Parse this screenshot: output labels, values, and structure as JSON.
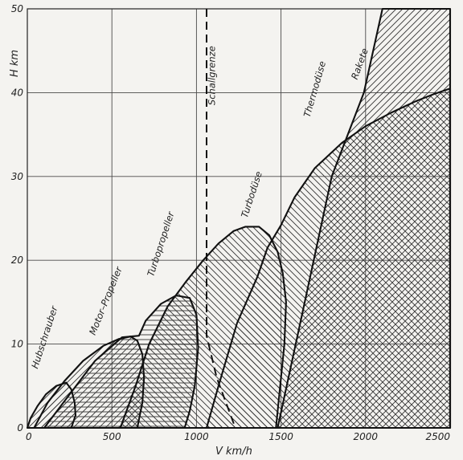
{
  "chart_data": {
    "type": "area",
    "xlabel": "V  km/h",
    "ylabel": "H  km",
    "xlim": [
      0,
      2500
    ],
    "ylim": [
      0,
      50
    ],
    "x_ticks": [
      "0",
      "500",
      "1000",
      "1500",
      "2000",
      "2500"
    ],
    "y_ticks": [
      "0",
      "10",
      "20",
      "30",
      "40",
      "50"
    ],
    "grid": true,
    "regions": [
      {
        "name": "Hubschrauber",
        "hatch": "diag-right",
        "boundary": [
          [
            0,
            0
          ],
          [
            20,
            1.2
          ],
          [
            60,
            2.6
          ],
          [
            110,
            4
          ],
          [
            170,
            5
          ],
          [
            230,
            5.4
          ],
          [
            260,
            4.6
          ],
          [
            280,
            3
          ],
          [
            285,
            1.5
          ],
          [
            260,
            0
          ],
          [
            0,
            0
          ]
        ]
      },
      {
        "name": "Motor–Propeller",
        "hatch": "diag-right",
        "boundary": [
          [
            40,
            0
          ],
          [
            120,
            3
          ],
          [
            220,
            5.6
          ],
          [
            330,
            8
          ],
          [
            450,
            9.8
          ],
          [
            540,
            10.6
          ],
          [
            610,
            10.9
          ],
          [
            650,
            10.4
          ],
          [
            680,
            8.8
          ],
          [
            690,
            6
          ],
          [
            680,
            3
          ],
          [
            650,
            0
          ],
          [
            40,
            0
          ]
        ]
      },
      {
        "name": "Turbopropeller",
        "hatch": "horizontal",
        "boundary": [
          [
            100,
            0
          ],
          [
            250,
            4
          ],
          [
            400,
            8
          ],
          [
            560,
            10.8
          ],
          [
            660,
            11
          ],
          [
            700,
            12.8
          ],
          [
            790,
            14.8
          ],
          [
            880,
            15.8
          ],
          [
            960,
            15.5
          ],
          [
            1000,
            13.5
          ],
          [
            1010,
            9.5
          ],
          [
            990,
            5
          ],
          [
            960,
            2
          ],
          [
            930,
            0
          ],
          [
            100,
            0
          ]
        ]
      },
      {
        "name": "Turbodüse",
        "hatch": "diag-left",
        "boundary": [
          [
            550,
            0
          ],
          [
            640,
            5
          ],
          [
            720,
            10
          ],
          [
            830,
            14.5
          ],
          [
            940,
            17.5
          ],
          [
            1040,
            20
          ],
          [
            1130,
            22
          ],
          [
            1220,
            23.5
          ],
          [
            1290,
            24
          ],
          [
            1370,
            24
          ],
          [
            1430,
            23
          ],
          [
            1480,
            21
          ],
          [
            1510,
            18.5
          ],
          [
            1530,
            15
          ],
          [
            1520,
            10
          ],
          [
            1490,
            4
          ],
          [
            1470,
            0
          ],
          [
            550,
            0
          ]
        ]
      },
      {
        "name": "Thermodüse",
        "hatch": "diag-left",
        "boundary": [
          [
            1060,
            0
          ],
          [
            1130,
            5
          ],
          [
            1240,
            12.5
          ],
          [
            1360,
            18
          ],
          [
            1420,
            21.5
          ],
          [
            1500,
            24.2
          ],
          [
            1580,
            27.5
          ],
          [
            1700,
            31
          ],
          [
            1860,
            34
          ],
          [
            2000,
            36
          ],
          [
            2150,
            37.6
          ],
          [
            2300,
            39
          ],
          [
            2400,
            39.8
          ],
          [
            2500,
            40.5
          ],
          [
            2500,
            0
          ],
          [
            1060,
            0
          ]
        ]
      },
      {
        "name": "Rakete",
        "hatch": "diag-right",
        "boundary": [
          [
            1480,
            0
          ],
          [
            1640,
            15
          ],
          [
            1800,
            30
          ],
          [
            1990,
            40
          ],
          [
            2100,
            50
          ],
          [
            2500,
            50
          ],
          [
            2500,
            0
          ],
          [
            1480,
            0
          ]
        ]
      }
    ],
    "lines": [
      {
        "name": "Schallgrenze",
        "style": "dashed",
        "points": [
          [
            1060,
            50
          ],
          [
            1060,
            11
          ],
          [
            1120,
            6
          ],
          [
            1230,
            0
          ]
        ]
      }
    ]
  }
}
